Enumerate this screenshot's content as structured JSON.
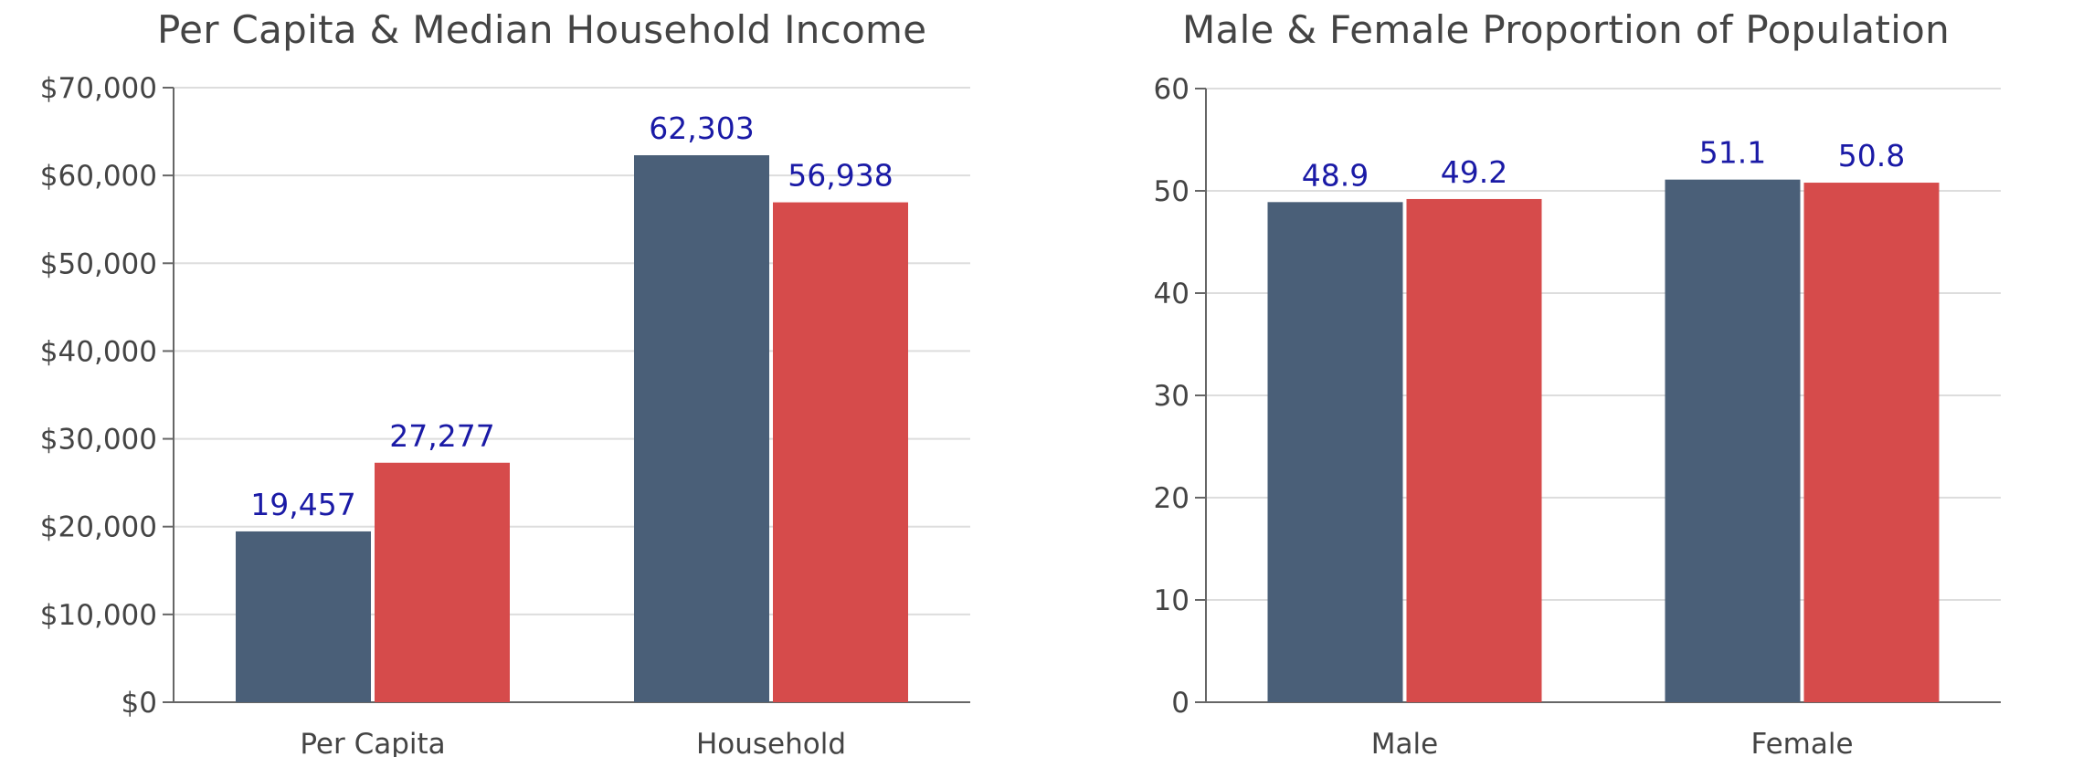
{
  "chart_data": [
    {
      "type": "bar",
      "title": "Per Capita & Median Household Income",
      "categories": [
        "Per Capita",
        "Household"
      ],
      "series": [
        {
          "values": [
            19457,
            62303
          ],
          "value_labels": [
            "19,457",
            "62,303"
          ],
          "color": "#4a5f78"
        },
        {
          "values": [
            27277,
            56938
          ],
          "value_labels": [
            "27,277",
            "56,938"
          ],
          "color": "#d64b4b"
        }
      ],
      "ylim": [
        0,
        70000
      ],
      "yticks": [
        0,
        10000,
        20000,
        30000,
        40000,
        50000,
        60000,
        70000
      ],
      "ytick_labels": [
        "$0",
        "$10,000",
        "$20,000",
        "$30,000",
        "$40,000",
        "$50,000",
        "$60,000",
        "$70,000"
      ],
      "grid": true
    },
    {
      "type": "bar",
      "title": "Male & Female Proportion of Population",
      "categories": [
        "Male",
        "Female"
      ],
      "series": [
        {
          "values": [
            48.9,
            51.1
          ],
          "value_labels": [
            "48.9",
            "51.1"
          ],
          "color": "#4a5f78"
        },
        {
          "values": [
            49.2,
            50.8
          ],
          "value_labels": [
            "49.2",
            "50.8"
          ],
          "color": "#d64b4b"
        }
      ],
      "ylim": [
        0,
        60
      ],
      "yticks": [
        0,
        10,
        20,
        30,
        40,
        50,
        60
      ],
      "ytick_labels": [
        "0",
        "10",
        "20",
        "30",
        "40",
        "50",
        "60"
      ],
      "grid": true
    }
  ]
}
